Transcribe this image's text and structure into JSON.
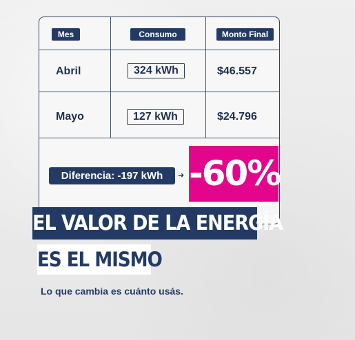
{
  "table": {
    "headers": {
      "mes": "Mes",
      "consumo": "Consumo",
      "monto_final": "Monto Final"
    },
    "rows": [
      {
        "mes": "Abril",
        "consumo": "324 kWh",
        "monto": "$46.557"
      },
      {
        "mes": "Mayo",
        "consumo": "127 kWh",
        "monto": "$24.796"
      }
    ]
  },
  "difference": {
    "label": "Diferencia: -197 kWh",
    "arrow_icon": "arrow-right-icon",
    "percent": "-60%"
  },
  "headline": {
    "line1": "EL VALOR DE LA ENERGÍA",
    "line2": "ES EL MISMO"
  },
  "subtitle": "Lo que cambia es cuánto usás.",
  "colors": {
    "navy": "#233b64",
    "magenta": "#e3068c",
    "background": "#ececec"
  }
}
